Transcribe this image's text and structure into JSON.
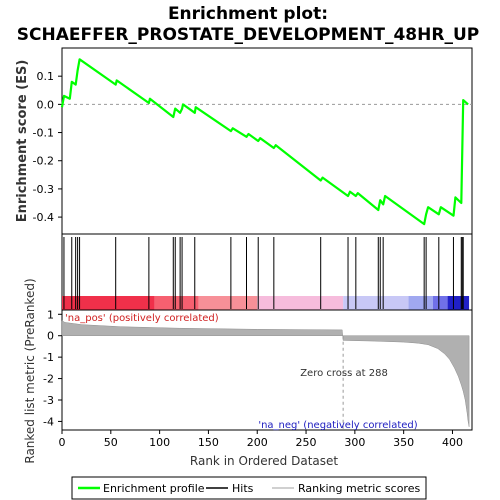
{
  "chart_data": [
    {
      "type": "line",
      "title": "Enrichment plot:",
      "subtitle": "SCHAEFFER_PROSTATE_DEVELOPMENT_48HR_UP",
      "ylabel": "Enrichment score (ES)",
      "xlim": [
        0,
        420
      ],
      "ylim": [
        -0.46,
        0.2
      ],
      "yticks": [
        "0.1",
        "0.0",
        "-0.1",
        "-0.2",
        "-0.3",
        "-0.4"
      ],
      "ytick_values": [
        0.1,
        0.0,
        -0.1,
        -0.2,
        -0.3,
        -0.4
      ],
      "line_color": "#00ff00",
      "series": [
        {
          "name": "Enrichment profile",
          "x": [
            0,
            2,
            8,
            10,
            14,
            16,
            18,
            55,
            56,
            89,
            90,
            114,
            116,
            121,
            123,
            124,
            136,
            137,
            173,
            175,
            189,
            191,
            201,
            203,
            217,
            219,
            265,
            267,
            293,
            295,
            301,
            303,
            324,
            326,
            329,
            331,
            371,
            373,
            375,
            386,
            388,
            401,
            403,
            409,
            411,
            416
          ],
          "y": [
            -0.01,
            0.03,
            0.02,
            0.08,
            0.07,
            0.12,
            0.16,
            0.07,
            0.085,
            0.005,
            0.02,
            -0.045,
            -0.015,
            -0.03,
            -0.015,
            0.0,
            -0.03,
            -0.01,
            -0.095,
            -0.085,
            -0.115,
            -0.105,
            -0.13,
            -0.12,
            -0.155,
            -0.145,
            -0.27,
            -0.26,
            -0.325,
            -0.31,
            -0.325,
            -0.315,
            -0.375,
            -0.34,
            -0.355,
            -0.325,
            -0.425,
            -0.39,
            -0.365,
            -0.39,
            -0.365,
            -0.395,
            -0.33,
            -0.35,
            0.015,
            0.0
          ]
        }
      ],
      "zero_line": true
    },
    {
      "type": "hits",
      "hits": [
        2,
        10,
        14,
        16,
        18,
        55,
        89,
        114,
        116,
        121,
        123,
        136,
        173,
        189,
        201,
        217,
        265,
        293,
        301,
        324,
        326,
        329,
        371,
        373,
        386,
        401,
        409,
        410,
        411
      ],
      "band": {
        "segments": [
          {
            "from": 0,
            "to": 95,
            "color": "#f0304a"
          },
          {
            "from": 95,
            "to": 140,
            "color": "#f66070"
          },
          {
            "from": 140,
            "to": 200,
            "color": "#f79098"
          },
          {
            "from": 200,
            "to": 288,
            "color": "#f6bcdc"
          },
          {
            "from": 288,
            "to": 355,
            "color": "#c8c8f6"
          },
          {
            "from": 355,
            "to": 380,
            "color": "#a0a8f0"
          },
          {
            "from": 380,
            "to": 395,
            "color": "#7070e8"
          },
          {
            "from": 395,
            "to": 417,
            "color": "#2020c8"
          }
        ]
      }
    },
    {
      "type": "area",
      "ylabel": "Ranked list metric (PreRanked)",
      "xlabel": "Rank in Ordered Dataset",
      "xlim": [
        0,
        420
      ],
      "ylim": [
        -4.4,
        1.2
      ],
      "xticks": [
        "0",
        "50",
        "100",
        "150",
        "200",
        "250",
        "300",
        "350",
        "400"
      ],
      "xtick_values": [
        0,
        50,
        100,
        150,
        200,
        250,
        300,
        350,
        400
      ],
      "yticks": [
        "1",
        "0",
        "-1",
        "-2",
        "-3",
        "-4"
      ],
      "ytick_values": [
        1,
        0,
        -1,
        -2,
        -3,
        -4
      ],
      "x": [
        0,
        3,
        20,
        60,
        120,
        200,
        287,
        288,
        320,
        350,
        365,
        375,
        385,
        392,
        397,
        402,
        406,
        409,
        411,
        413,
        415,
        416,
        417
      ],
      "y": [
        0.7,
        0.62,
        0.52,
        0.42,
        0.35,
        0.3,
        0.27,
        -0.22,
        -0.25,
        -0.3,
        -0.35,
        -0.42,
        -0.6,
        -0.85,
        -1.1,
        -1.5,
        -1.9,
        -2.3,
        -2.6,
        -3.0,
        -3.6,
        -4.0,
        -4.25
      ],
      "fill_color": "#b0b0b0",
      "annotations": {
        "pos_label": "'na_pos' (positively correlated)",
        "neg_label": "'na_neg' (negatively correlated)",
        "zero_cross": "Zero cross at 288",
        "zero_cross_x": 288
      }
    }
  ],
  "legend": {
    "items": [
      {
        "label": "Enrichment profile",
        "color": "#00ff00"
      },
      {
        "label": "Hits",
        "color": "#000000"
      },
      {
        "label": "Ranking metric scores",
        "color": "#c0c0c0"
      }
    ]
  }
}
